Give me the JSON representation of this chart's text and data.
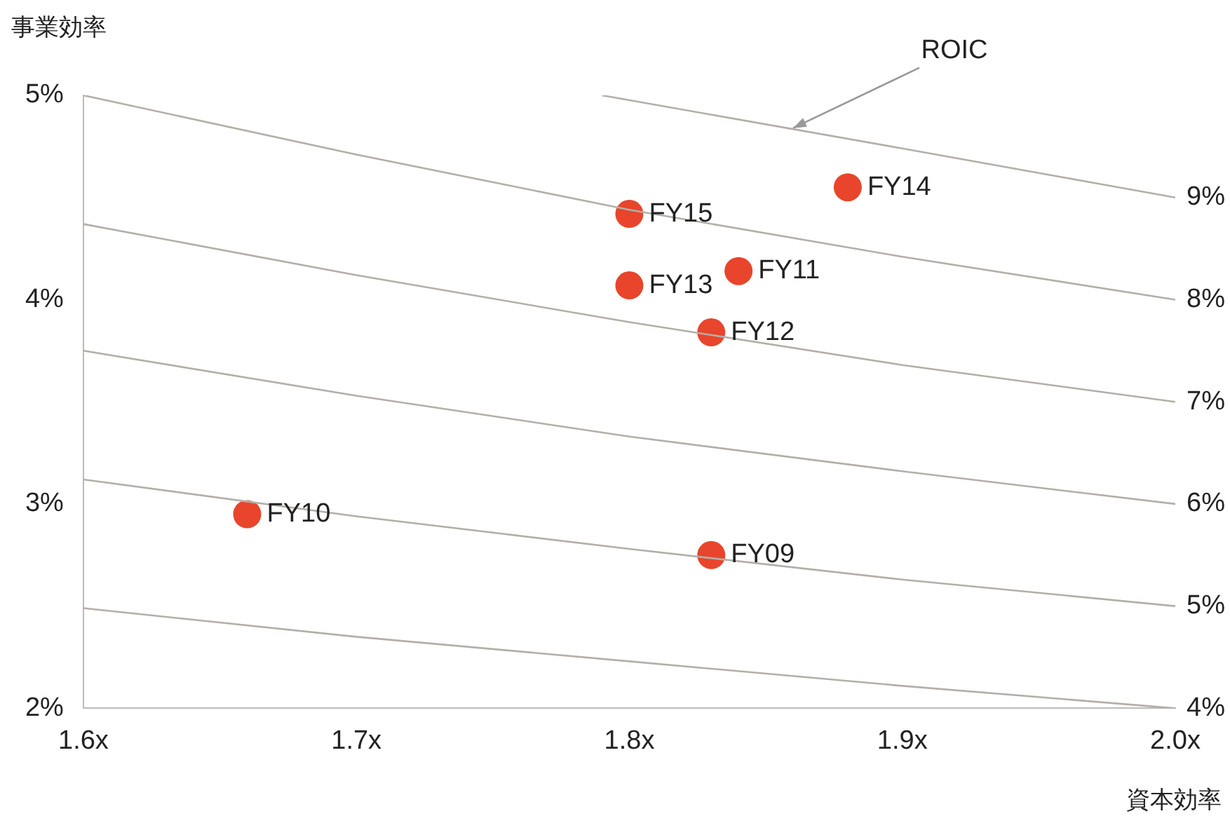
{
  "chart_data": {
    "type": "scatter",
    "xlabel": "資本効率",
    "ylabel": "事業効率",
    "xlim": [
      1.6,
      2.0
    ],
    "xticks": [
      {
        "value": 1.6,
        "label": "1.6x"
      },
      {
        "value": 1.7,
        "label": "1.7x"
      },
      {
        "value": 1.8,
        "label": "1.8x"
      },
      {
        "value": 1.9,
        "label": "1.9x"
      },
      {
        "value": 2.0,
        "label": "2.0x"
      }
    ],
    "ylim": [
      2,
      5
    ],
    "yticks": [
      {
        "value": 2,
        "label": "2%"
      },
      {
        "value": 3,
        "label": "3%"
      },
      {
        "value": 4,
        "label": "4%"
      },
      {
        "value": 5,
        "label": "5%"
      }
    ],
    "grid": false,
    "legend": false,
    "annotations": [
      {
        "text": "ROIC",
        "x": 1.86,
        "y": 4.84
      }
    ],
    "series": [
      {
        "name": "4%",
        "type": "line",
        "marker": "none",
        "color": "#b3afa8",
        "x": [
          1.6,
          1.7,
          1.8,
          1.9,
          2.0
        ],
        "values": [
          2.49,
          2.35,
          2.23,
          2.11,
          2.0
        ]
      },
      {
        "name": "5%",
        "type": "line",
        "marker": "none",
        "color": "#b3afa8",
        "x": [
          1.6,
          1.7,
          1.8,
          1.9,
          2.0
        ],
        "values": [
          3.12,
          2.94,
          2.78,
          2.63,
          2.5
        ]
      },
      {
        "name": "6%",
        "type": "line",
        "marker": "none",
        "color": "#b3afa8",
        "x": [
          1.6,
          1.7,
          1.8,
          1.9,
          2.0
        ],
        "values": [
          3.75,
          3.53,
          3.33,
          3.16,
          3.0
        ]
      },
      {
        "name": "7%",
        "type": "line",
        "marker": "none",
        "color": "#b3afa8",
        "x": [
          1.6,
          1.7,
          1.8,
          1.9,
          2.0
        ],
        "values": [
          4.37,
          4.12,
          3.89,
          3.68,
          3.5
        ]
      },
      {
        "name": "8%",
        "type": "line",
        "marker": "none",
        "color": "#b3afa8",
        "x": [
          1.6,
          1.7,
          1.8,
          1.9,
          2.0
        ],
        "values": [
          5.0,
          4.71,
          4.44,
          4.21,
          4.0
        ]
      },
      {
        "name": "9%",
        "type": "line",
        "marker": "none",
        "color": "#b3afa8",
        "x": [
          1.79,
          1.9,
          2.0
        ],
        "values": [
          5.0,
          4.74,
          4.5
        ]
      },
      {
        "name": "FY09",
        "marker": "circle",
        "color": "#e8452c",
        "x": [
          1.83
        ],
        "values": [
          2.75
        ]
      },
      {
        "name": "FY10",
        "marker": "circle",
        "color": "#e8452c",
        "x": [
          1.66
        ],
        "values": [
          2.95
        ]
      },
      {
        "name": "FY11",
        "marker": "circle",
        "color": "#e8452c",
        "x": [
          1.84
        ],
        "values": [
          4.14
        ]
      },
      {
        "name": "FY12",
        "marker": "circle",
        "color": "#e8452c",
        "x": [
          1.83
        ],
        "values": [
          3.84
        ]
      },
      {
        "name": "FY13",
        "marker": "circle",
        "color": "#e8452c",
        "x": [
          1.8
        ],
        "values": [
          4.07
        ]
      },
      {
        "name": "FY14",
        "marker": "circle",
        "color": "#e8452c",
        "x": [
          1.88
        ],
        "values": [
          4.55
        ]
      },
      {
        "name": "FY15",
        "marker": "circle",
        "color": "#e8452c",
        "x": [
          1.8
        ],
        "values": [
          4.42
        ]
      }
    ]
  }
}
